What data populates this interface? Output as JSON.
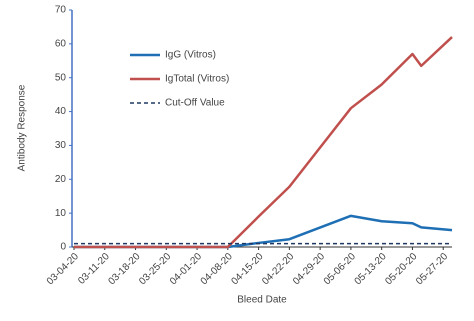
{
  "chart_data": {
    "type": "line",
    "x_label": "Bleed Date",
    "y_label": "Antibody Response",
    "xlim": [
      "03-04-20",
      "05-29-20"
    ],
    "xticks": [
      "03-04-20",
      "03-11-20",
      "03-18-20",
      "03-25-20",
      "04-01-20",
      "04-08-20",
      "04-15-20",
      "04-22-20",
      "04-29-20",
      "05-06-20",
      "05-13-20",
      "05-20-20",
      "05-27-20"
    ],
    "ylim": [
      0,
      70
    ],
    "yticks": [
      0,
      10,
      20,
      30,
      40,
      50,
      60,
      70
    ],
    "x": [
      "03-04-20",
      "04-08-20",
      "04-15-20",
      "04-22-20",
      "05-06-20",
      "05-13-20",
      "05-20-20",
      "05-22-20",
      "05-29-20"
    ],
    "series": [
      {
        "name": "IgG (Vitros)",
        "color": "#1f6fb5",
        "values": [
          0,
          0,
          1.2,
          2.3,
          9.2,
          7.6,
          7,
          5.8,
          5
        ]
      },
      {
        "name": "IgTotal (Vitros)",
        "color": "#c0504d",
        "values": [
          0,
          0,
          9,
          17.8,
          41,
          48,
          57,
          53.5,
          62
        ]
      }
    ],
    "cutoff": {
      "name": "Cut-Off Value",
      "value": 1,
      "color": "#1f3864"
    }
  }
}
